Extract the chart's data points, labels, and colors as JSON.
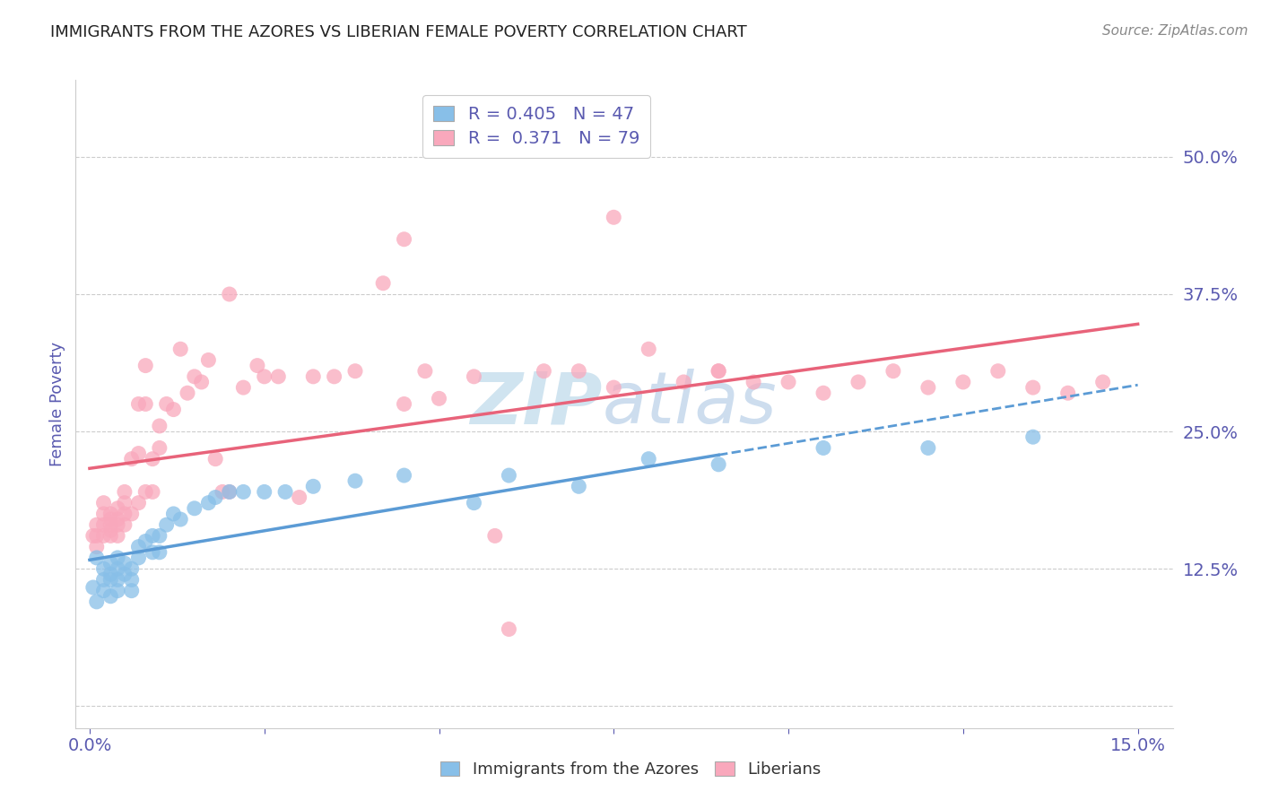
{
  "title": "IMMIGRANTS FROM THE AZORES VS LIBERIAN FEMALE POVERTY CORRELATION CHART",
  "source_text": "Source: ZipAtlas.com",
  "ylabel": "Female Poverty",
  "xlim": [
    -0.002,
    0.155
  ],
  "ylim": [
    -0.02,
    0.57
  ],
  "xticks": [
    0.0,
    0.025,
    0.05,
    0.075,
    0.1,
    0.125,
    0.15
  ],
  "xtick_labels": [
    "0.0%",
    "",
    "",
    "",
    "",
    "",
    "15.0%"
  ],
  "ytick_vals": [
    0.125,
    0.25,
    0.375,
    0.5
  ],
  "ytick_labels": [
    "12.5%",
    "25.0%",
    "37.5%",
    "50.0%"
  ],
  "grid_lines": [
    0.0,
    0.125,
    0.25,
    0.375,
    0.5
  ],
  "legend1_label": "R = 0.405   N = 47",
  "legend2_label": "R =  0.371   N = 79",
  "blue_color": "#88bfe8",
  "pink_color": "#f9a8bc",
  "blue_line_color": "#5b9bd5",
  "pink_line_color": "#e8637a",
  "title_color": "#222222",
  "axis_label_color": "#5a5ab0",
  "tick_color": "#5a5ab0",
  "watermark_text": "ZIPatlas",
  "watermark_color": "#d0e4f0",
  "blue_scatter_x": [
    0.0005,
    0.001,
    0.001,
    0.002,
    0.002,
    0.002,
    0.003,
    0.003,
    0.003,
    0.003,
    0.004,
    0.004,
    0.004,
    0.004,
    0.005,
    0.005,
    0.006,
    0.006,
    0.006,
    0.007,
    0.007,
    0.008,
    0.009,
    0.009,
    0.01,
    0.01,
    0.011,
    0.012,
    0.013,
    0.015,
    0.017,
    0.018,
    0.02,
    0.022,
    0.025,
    0.028,
    0.032,
    0.038,
    0.045,
    0.055,
    0.06,
    0.07,
    0.08,
    0.09,
    0.105,
    0.12,
    0.135
  ],
  "blue_scatter_y": [
    0.108,
    0.135,
    0.095,
    0.125,
    0.115,
    0.105,
    0.13,
    0.12,
    0.115,
    0.1,
    0.135,
    0.125,
    0.115,
    0.105,
    0.13,
    0.12,
    0.125,
    0.115,
    0.105,
    0.135,
    0.145,
    0.15,
    0.155,
    0.14,
    0.155,
    0.14,
    0.165,
    0.175,
    0.17,
    0.18,
    0.185,
    0.19,
    0.195,
    0.195,
    0.195,
    0.195,
    0.2,
    0.205,
    0.21,
    0.185,
    0.21,
    0.2,
    0.225,
    0.22,
    0.235,
    0.235,
    0.245
  ],
  "pink_scatter_x": [
    0.0005,
    0.001,
    0.001,
    0.001,
    0.002,
    0.002,
    0.002,
    0.002,
    0.003,
    0.003,
    0.003,
    0.003,
    0.003,
    0.004,
    0.004,
    0.004,
    0.004,
    0.005,
    0.005,
    0.005,
    0.005,
    0.006,
    0.006,
    0.007,
    0.007,
    0.007,
    0.008,
    0.008,
    0.008,
    0.009,
    0.009,
    0.01,
    0.01,
    0.011,
    0.012,
    0.013,
    0.014,
    0.015,
    0.016,
    0.017,
    0.018,
    0.019,
    0.02,
    0.022,
    0.024,
    0.025,
    0.027,
    0.03,
    0.032,
    0.035,
    0.038,
    0.042,
    0.045,
    0.048,
    0.05,
    0.055,
    0.058,
    0.065,
    0.07,
    0.075,
    0.08,
    0.085,
    0.09,
    0.095,
    0.1,
    0.105,
    0.11,
    0.115,
    0.12,
    0.125,
    0.13,
    0.135,
    0.14,
    0.145,
    0.02,
    0.045,
    0.06,
    0.075,
    0.09
  ],
  "pink_scatter_y": [
    0.155,
    0.165,
    0.155,
    0.145,
    0.155,
    0.165,
    0.175,
    0.185,
    0.16,
    0.17,
    0.155,
    0.165,
    0.175,
    0.165,
    0.155,
    0.17,
    0.18,
    0.165,
    0.175,
    0.185,
    0.195,
    0.175,
    0.225,
    0.185,
    0.23,
    0.275,
    0.195,
    0.31,
    0.275,
    0.225,
    0.195,
    0.255,
    0.235,
    0.275,
    0.27,
    0.325,
    0.285,
    0.3,
    0.295,
    0.315,
    0.225,
    0.195,
    0.195,
    0.29,
    0.31,
    0.3,
    0.3,
    0.19,
    0.3,
    0.3,
    0.305,
    0.385,
    0.275,
    0.305,
    0.28,
    0.3,
    0.155,
    0.305,
    0.305,
    0.29,
    0.325,
    0.295,
    0.305,
    0.295,
    0.295,
    0.285,
    0.295,
    0.305,
    0.29,
    0.295,
    0.305,
    0.29,
    0.285,
    0.295,
    0.375,
    0.425,
    0.07,
    0.445,
    0.305
  ]
}
